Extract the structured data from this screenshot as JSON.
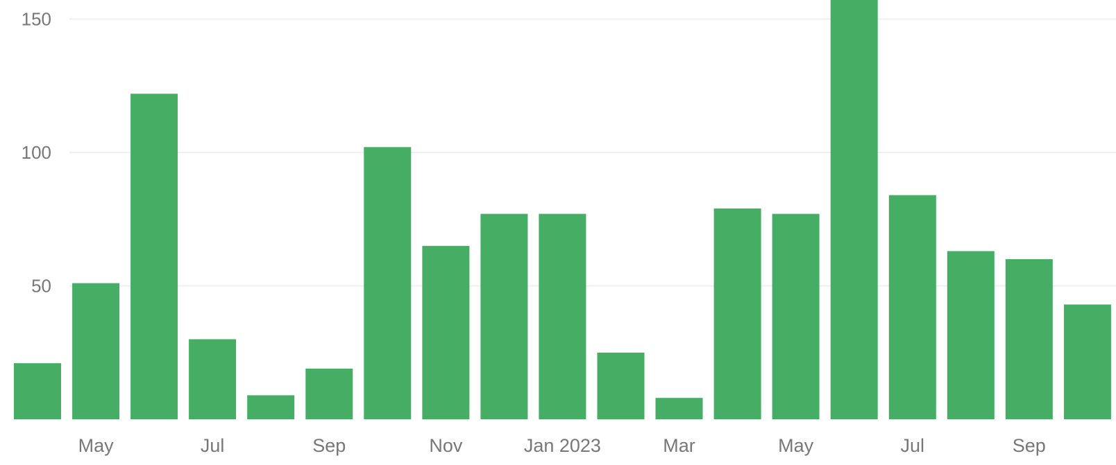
{
  "chart_data": {
    "type": "bar",
    "title": "",
    "xlabel": "",
    "ylabel": "",
    "color": "#45ad64",
    "ylim": [
      0,
      158
    ],
    "yticks": [
      50,
      100,
      150
    ],
    "grid": true,
    "legend": "none",
    "categories": [
      "2022-04",
      "2022-05",
      "2022-06",
      "2022-07",
      "2022-08",
      "2022-09",
      "2022-10",
      "2022-11",
      "2022-12",
      "2023-01",
      "2023-02",
      "2023-03",
      "2023-04",
      "2023-05",
      "2023-06",
      "2023-07",
      "2023-08",
      "2023-09",
      "2023-10"
    ],
    "values": [
      21,
      51,
      122,
      30,
      9,
      19,
      102,
      65,
      77,
      77,
      25,
      8,
      79,
      77,
      158,
      84,
      63,
      60,
      43
    ],
    "xtick_labels": [
      {
        "category": "2022-05",
        "label": "May"
      },
      {
        "category": "2022-07",
        "label": "Jul"
      },
      {
        "category": "2022-09",
        "label": "Sep"
      },
      {
        "category": "2022-11",
        "label": "Nov"
      },
      {
        "category": "2023-01",
        "label": "Jan 2023"
      },
      {
        "category": "2023-03",
        "label": "Mar"
      },
      {
        "category": "2023-05",
        "label": "May"
      },
      {
        "category": "2023-07",
        "label": "Jul"
      },
      {
        "category": "2023-09",
        "label": "Sep"
      }
    ]
  }
}
